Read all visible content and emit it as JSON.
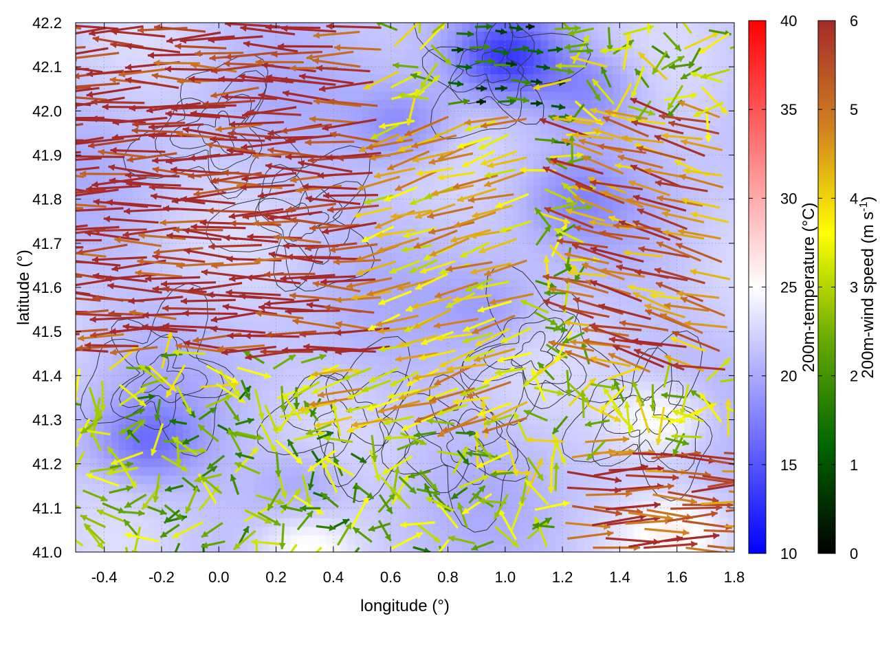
{
  "chart_data": {
    "type": "heatmap",
    "overlays": [
      "contour",
      "vector-field"
    ],
    "xlabel": "longitude (°)",
    "ylabel": "latitude (°)",
    "xlim": [
      -0.5,
      1.8
    ],
    "ylim": [
      41.0,
      42.2
    ],
    "x_ticks": [
      -0.4,
      -0.2,
      0.0,
      0.2,
      0.4,
      0.6,
      0.8,
      1.0,
      1.2,
      1.4,
      1.6,
      1.8
    ],
    "y_ticks": [
      41.0,
      41.1,
      41.2,
      41.3,
      41.4,
      41.5,
      41.6,
      41.7,
      41.8,
      41.9,
      42.0,
      42.1,
      42.2
    ],
    "grid": true,
    "temperature_colorbar": {
      "label": "200m-temperature (°C)",
      "range": [
        10,
        40
      ],
      "ticks": [
        10,
        15,
        20,
        25,
        30,
        35,
        40
      ],
      "colors": [
        "#0000ff",
        "#ffffff",
        "#ff0000"
      ]
    },
    "windspeed_colorbar": {
      "label_main": "200m-wind speed (m s",
      "label_sup": "-1",
      "label_end": ")",
      "range": [
        0,
        6
      ],
      "ticks": [
        0,
        1,
        2,
        3,
        4,
        5,
        6
      ],
      "colors": [
        "#000000",
        "#006400",
        "#66aa00",
        "#ffff00",
        "#d08020",
        "#a52a2a"
      ]
    },
    "temperature_field": {
      "base": 21.5,
      "cold_spots": [
        {
          "lon": 1.0,
          "lat": 42.12,
          "value": 14
        },
        {
          "lon": 0.65,
          "lat": 41.97,
          "value": 17.5
        },
        {
          "lon": 1.3,
          "lat": 42.05,
          "value": 18
        },
        {
          "lon": 1.25,
          "lat": 41.8,
          "value": 19
        },
        {
          "lon": -0.25,
          "lat": 41.25,
          "value": 17
        },
        {
          "lon": 0.3,
          "lat": 41.15,
          "value": 19
        },
        {
          "lon": 0.95,
          "lat": 41.55,
          "value": 19
        }
      ],
      "warm_spots": [
        {
          "lon": 1.55,
          "lat": 41.3,
          "value": 26
        },
        {
          "lon": 0.3,
          "lat": 41.0,
          "value": 26
        },
        {
          "lon": 1.6,
          "lat": 41.05,
          "value": 25
        }
      ]
    },
    "wind_field": {
      "regimes": [
        {
          "region": "west",
          "lon_range": [
            -0.5,
            0.6
          ],
          "lat_range": [
            41.45,
            42.2
          ],
          "direction": "toward west",
          "speed": 6
        },
        {
          "region": "center",
          "lon_range": [
            0.4,
            1.1
          ],
          "lat_range": [
            41.3,
            42.0
          ],
          "direction": "toward west-southwest",
          "speed": 4
        },
        {
          "region": "north-center",
          "lon_range": [
            0.8,
            1.2
          ],
          "lat_range": [
            41.9,
            42.2
          ],
          "direction": "toward east",
          "speed": 1.5
        },
        {
          "region": "south-west",
          "lon_range": [
            -0.5,
            0.9
          ],
          "lat_range": [
            41.0,
            41.35
          ],
          "direction": "variable",
          "speed": 2.5
        },
        {
          "region": "south-east",
          "lon_range": [
            1.2,
            1.8
          ],
          "lat_range": [
            41.0,
            41.25
          ],
          "direction": "toward east",
          "speed": 5.5
        },
        {
          "region": "east",
          "lon_range": [
            1.3,
            1.8
          ],
          "lat_range": [
            41.4,
            42.0
          ],
          "direction": "toward west-northwest",
          "speed": 5
        }
      ]
    },
    "contours": {
      "color": "#333333",
      "centers": [
        {
          "lon": 0.95,
          "lat": 42.1
        },
        {
          "lon": 0.0,
          "lat": 41.95
        },
        {
          "lon": 0.3,
          "lat": 41.75
        },
        {
          "lon": 0.85,
          "lat": 41.25
        },
        {
          "lon": 0.45,
          "lat": 41.3
        },
        {
          "lon": 1.5,
          "lat": 41.3
        },
        {
          "lon": 1.1,
          "lat": 41.45
        },
        {
          "lon": -0.2,
          "lat": 41.4
        }
      ]
    }
  }
}
